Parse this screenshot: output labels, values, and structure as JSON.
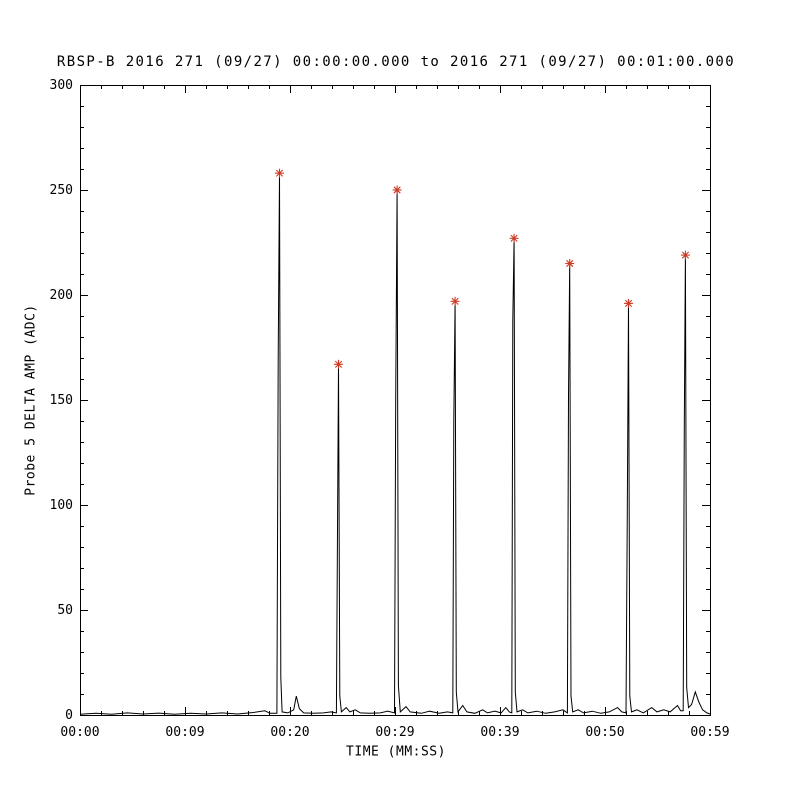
{
  "window": {
    "background": "#ffffff"
  },
  "chart_data": {
    "type": "line",
    "title": "RBSP-B 2016 271 (09/27) 00:00:00.000 to 2016 271 (09/27) 00:01:00.000",
    "xlabel": "TIME (MM:SS)",
    "ylabel": "Probe 5 DELTA AMP (ADC)",
    "xlim_seconds": [
      0,
      60
    ],
    "ylim": [
      0,
      300
    ],
    "x_tick_seconds": [
      0,
      10,
      20,
      30,
      40,
      50,
      60
    ],
    "x_tick_labels": [
      "00:00",
      "00:09",
      "00:20",
      "00:29",
      "00:39",
      "00:50",
      "00:59"
    ],
    "y_tick_values": [
      0,
      50,
      100,
      150,
      200,
      250,
      300
    ],
    "y_tick_labels": [
      "0",
      "50",
      "100",
      "150",
      "200",
      "250",
      "300"
    ],
    "x_minor_tick_step": 2,
    "y_minor_tick_step": 10,
    "grid": false,
    "legend": "none",
    "line_color": "#000000",
    "marker_color": "#cc3a24",
    "marker_style": "asterisk",
    "peaks": {
      "x_seconds": [
        19.0,
        24.62,
        30.2,
        35.72,
        41.34,
        46.64,
        52.24,
        57.66
      ],
      "adc_values": [
        258,
        167,
        250,
        197,
        227,
        215,
        196,
        219
      ]
    },
    "line_points_seconds_adc": [
      [
        0,
        0.4
      ],
      [
        1.5,
        0.8
      ],
      [
        3,
        0.4
      ],
      [
        4.5,
        1
      ],
      [
        6,
        0.5
      ],
      [
        7.5,
        0.9
      ],
      [
        9,
        0.4
      ],
      [
        10.5,
        0.8
      ],
      [
        12,
        0.5
      ],
      [
        13.5,
        1
      ],
      [
        15,
        0.5
      ],
      [
        16.5,
        1.2
      ],
      [
        17.6,
        2
      ],
      [
        18.1,
        0.8
      ],
      [
        18.75,
        0.8
      ],
      [
        18.88,
        170
      ],
      [
        19.0,
        258
      ],
      [
        19.12,
        18
      ],
      [
        19.25,
        1.5
      ],
      [
        19.8,
        1
      ],
      [
        20.35,
        2.5
      ],
      [
        20.6,
        9
      ],
      [
        20.9,
        3
      ],
      [
        21.3,
        1
      ],
      [
        22.2,
        0.8
      ],
      [
        23.2,
        1
      ],
      [
        23.9,
        1.5
      ],
      [
        24.42,
        1
      ],
      [
        24.52,
        88
      ],
      [
        24.62,
        167
      ],
      [
        24.74,
        9
      ],
      [
        24.9,
        1.5
      ],
      [
        25.35,
        3.5
      ],
      [
        25.7,
        1.5
      ],
      [
        26.2,
        2.5
      ],
      [
        26.7,
        1
      ],
      [
        27.6,
        0.8
      ],
      [
        28.6,
        1
      ],
      [
        29.3,
        1.8
      ],
      [
        29.95,
        1
      ],
      [
        30.07,
        150
      ],
      [
        30.2,
        250
      ],
      [
        30.32,
        14
      ],
      [
        30.5,
        1.5
      ],
      [
        31.05,
        4
      ],
      [
        31.45,
        1.5
      ],
      [
        32.5,
        0.8
      ],
      [
        33.3,
        1.8
      ],
      [
        34.2,
        0.8
      ],
      [
        35.0,
        1.5
      ],
      [
        35.5,
        1
      ],
      [
        35.6,
        140
      ],
      [
        35.72,
        197
      ],
      [
        35.84,
        11
      ],
      [
        36.0,
        1.5
      ],
      [
        36.45,
        4.5
      ],
      [
        36.85,
        1.5
      ],
      [
        37.6,
        0.8
      ],
      [
        38.35,
        2.5
      ],
      [
        38.8,
        1
      ],
      [
        39.5,
        1.8
      ],
      [
        40.1,
        1
      ],
      [
        40.55,
        3.5
      ],
      [
        40.9,
        1.5
      ],
      [
        41.12,
        1
      ],
      [
        41.22,
        188
      ],
      [
        41.34,
        227
      ],
      [
        41.46,
        11
      ],
      [
        41.62,
        1.5
      ],
      [
        42.15,
        2.5
      ],
      [
        42.65,
        1
      ],
      [
        43.5,
        1.8
      ],
      [
        44.35,
        0.8
      ],
      [
        45.2,
        1.5
      ],
      [
        46.0,
        2.5
      ],
      [
        46.42,
        1
      ],
      [
        46.52,
        152
      ],
      [
        46.64,
        215
      ],
      [
        46.76,
        9
      ],
      [
        46.92,
        1.5
      ],
      [
        47.45,
        2.5
      ],
      [
        47.95,
        1
      ],
      [
        48.8,
        1.8
      ],
      [
        49.6,
        0.8
      ],
      [
        50.4,
        1.5
      ],
      [
        51.2,
        3.5
      ],
      [
        51.6,
        1.5
      ],
      [
        52.0,
        1
      ],
      [
        52.12,
        97
      ],
      [
        52.24,
        196
      ],
      [
        52.36,
        9
      ],
      [
        52.52,
        1.5
      ],
      [
        53.05,
        2.5
      ],
      [
        53.65,
        1
      ],
      [
        54.45,
        3.5
      ],
      [
        54.95,
        1.5
      ],
      [
        55.6,
        2.5
      ],
      [
        56.2,
        1.5
      ],
      [
        56.9,
        4.5
      ],
      [
        57.2,
        2
      ],
      [
        57.45,
        2
      ],
      [
        57.55,
        138
      ],
      [
        57.66,
        219
      ],
      [
        57.78,
        13
      ],
      [
        57.95,
        3.5
      ],
      [
        58.25,
        5
      ],
      [
        58.6,
        11
      ],
      [
        58.95,
        6
      ],
      [
        59.3,
        2.5
      ],
      [
        59.7,
        1
      ],
      [
        60,
        0.5
      ]
    ]
  }
}
